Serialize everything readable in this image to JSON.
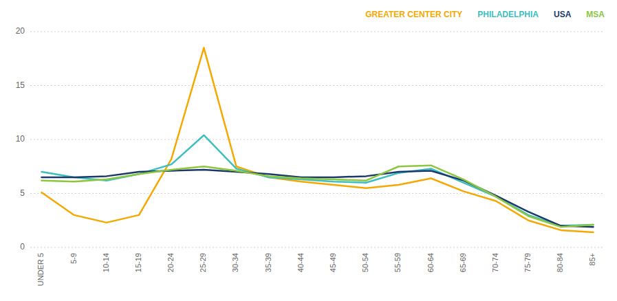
{
  "chart_data": {
    "type": "line",
    "categories": [
      "UNDER 5",
      "5-9",
      "10-14",
      "15-19",
      "20-24",
      "25-29",
      "30-34",
      "35-39",
      "40-44",
      "45-49",
      "50-54",
      "55-59",
      "60-64",
      "65-69",
      "70-74",
      "75-79",
      "80-84",
      "85+"
    ],
    "series": [
      {
        "name": "GREATER CENTER CITY",
        "color": "#F5A800",
        "values": [
          5.1,
          3.0,
          2.3,
          3.0,
          8.2,
          18.5,
          7.5,
          6.5,
          6.1,
          5.8,
          5.5,
          5.8,
          6.4,
          5.2,
          4.3,
          2.5,
          1.6,
          1.4
        ]
      },
      {
        "name": "PHILADELPHIA",
        "color": "#3DBFBF",
        "values": [
          7.0,
          6.5,
          6.2,
          6.8,
          7.7,
          10.4,
          7.3,
          6.5,
          6.3,
          6.1,
          6.0,
          6.9,
          7.3,
          6.0,
          4.7,
          3.0,
          2.0,
          2.1
        ]
      },
      {
        "name": "USA",
        "color": "#1B3A6B",
        "values": [
          6.5,
          6.5,
          6.6,
          7.0,
          7.1,
          7.2,
          7.0,
          6.8,
          6.5,
          6.5,
          6.6,
          7.0,
          7.1,
          6.2,
          4.8,
          3.3,
          2.0,
          1.9
        ]
      },
      {
        "name": "MSA",
        "color": "#8DC63F",
        "values": [
          6.2,
          6.1,
          6.3,
          6.8,
          7.2,
          7.5,
          7.1,
          6.6,
          6.4,
          6.3,
          6.2,
          7.5,
          7.6,
          6.3,
          4.7,
          2.9,
          1.9,
          2.1
        ]
      }
    ],
    "ylim": [
      0,
      20
    ],
    "yticks": [
      0,
      5,
      10,
      15,
      20
    ],
    "grid": true,
    "legend": "top-right"
  }
}
